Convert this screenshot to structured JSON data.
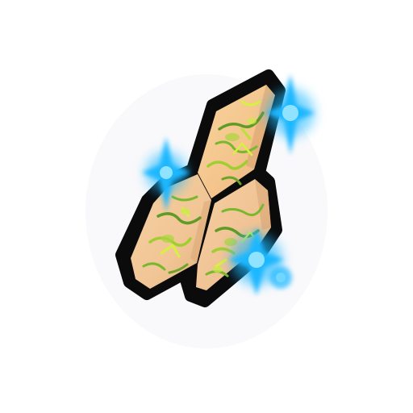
{
  "item": {
    "kind": "stone-tiles-icon",
    "tile_count": 3,
    "colors": {
      "outline": "#0a0a0a",
      "tile_top": "#f6cd8f",
      "tile_left": "#f3c99a",
      "tile_right": "#f4c99a",
      "tile_shade": "#d8a878",
      "moss": "#9fcf2e",
      "moss_light": "#d6f23f",
      "moss_dark": "#5f9b25",
      "sparkle": "#1fb7ff",
      "sparkle_core": "#8fe3ff",
      "background": "#ffffff"
    }
  }
}
